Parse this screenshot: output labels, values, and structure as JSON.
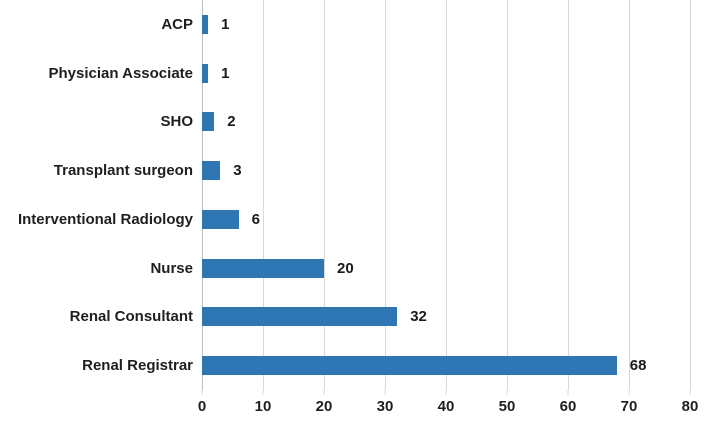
{
  "chart_data": {
    "type": "bar",
    "orientation": "horizontal",
    "title": "",
    "xlabel": "",
    "ylabel": "",
    "categories": [
      "ACP",
      "Physician Associate",
      "SHO",
      "Transplant surgeon",
      "Interventional Radiology",
      "Nurse",
      "Renal Consultant",
      "Renal Registrar"
    ],
    "values": [
      1,
      1,
      2,
      3,
      6,
      20,
      32,
      68
    ],
    "data_labels": [
      "1",
      "1",
      "2",
      "3",
      "6",
      "20",
      "32",
      "68"
    ],
    "xlim": [
      0,
      80
    ],
    "xticks": [
      0,
      10,
      20,
      30,
      40,
      50,
      60,
      70,
      80
    ],
    "xtick_labels": [
      "0",
      "10",
      "20",
      "30",
      "40",
      "50",
      "60",
      "70",
      "80"
    ],
    "grid": true,
    "legend": false,
    "colors": {
      "bar": "#2f76b5",
      "gridline": "#d9d9d9",
      "axis_line": "#bfbfbf",
      "text": "#1f1f1f",
      "background": "#ffffff"
    }
  }
}
